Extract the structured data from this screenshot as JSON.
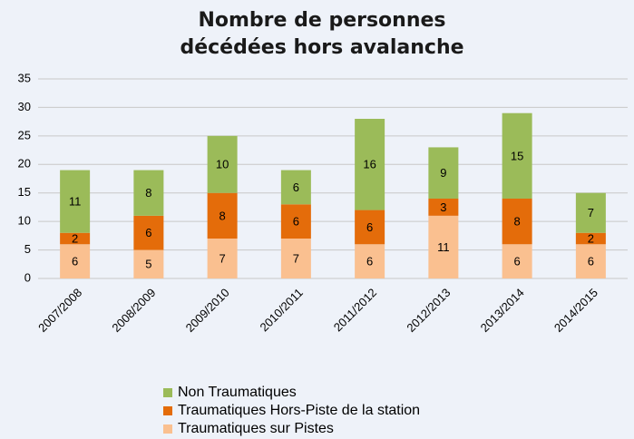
{
  "chart_data": {
    "type": "stacked_bar",
    "title": "Nombre de personnes décédées hors avalanche",
    "categories": [
      "2007/2008",
      "2008/2009",
      "2009/2010",
      "2010/2011",
      "2011/2012",
      "2012/2013",
      "2013/2014",
      "2014/2015"
    ],
    "series": [
      {
        "name": "Traumatiques sur Pistes",
        "color": "#fac090",
        "values": [
          6,
          5,
          7,
          7,
          6,
          11,
          6,
          6
        ]
      },
      {
        "name": "Traumatiques Hors-Piste  de la station",
        "color": "#e46c0a",
        "values": [
          2,
          6,
          8,
          6,
          6,
          3,
          8,
          2
        ]
      },
      {
        "name": "Non Traumatiques",
        "color": "#9bbb59",
        "values": [
          11,
          8,
          10,
          6,
          16,
          9,
          15,
          7
        ]
      }
    ],
    "ylim": [
      0,
      35
    ],
    "yticks": [
      0,
      5,
      10,
      15,
      20,
      25,
      30,
      35
    ],
    "grid": true,
    "legend": "bottom"
  }
}
